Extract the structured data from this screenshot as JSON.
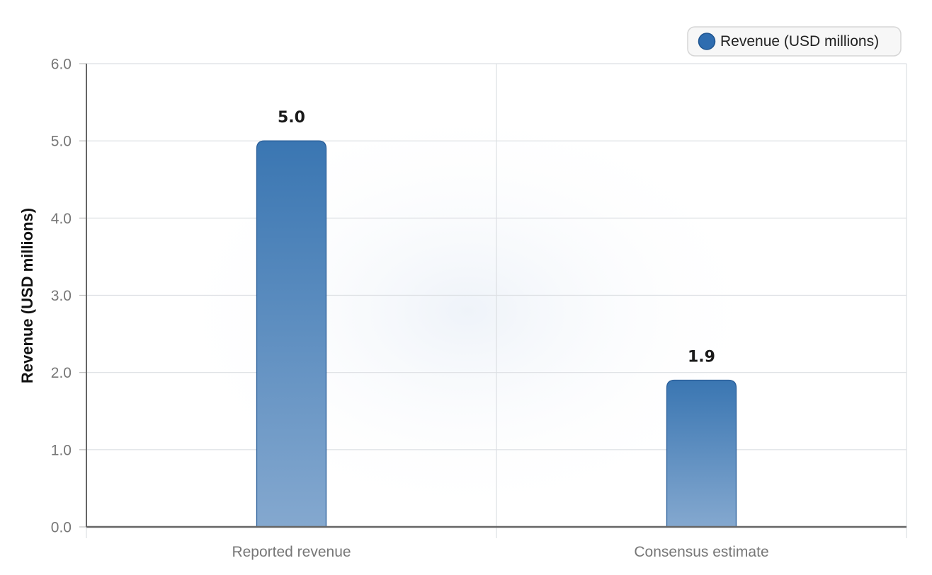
{
  "chart_data": {
    "type": "bar",
    "categories": [
      "Reported revenue",
      "Consensus estimate"
    ],
    "series": [
      {
        "name": "Revenue (USD millions)",
        "values": [
          5.0,
          1.9
        ],
        "value_labels": [
          "5.0",
          "1.9"
        ]
      }
    ],
    "xlabel": "",
    "ylabel": "Revenue (USD millions)",
    "ylim": [
      0,
      6
    ],
    "yticks": [
      0,
      1,
      2,
      3,
      4,
      5,
      6
    ],
    "ytick_labels": [
      "0.0",
      "1.0",
      "2.0",
      "3.0",
      "4.0",
      "5.0",
      "6.0"
    ],
    "grid": true,
    "legend_position": "top-right",
    "colors": {
      "bar_top": "#3a76b2",
      "bar_bottom": "#84a8cf",
      "bar_stroke": "#2a5f9a",
      "legend_marker": "#2f6db0"
    }
  }
}
